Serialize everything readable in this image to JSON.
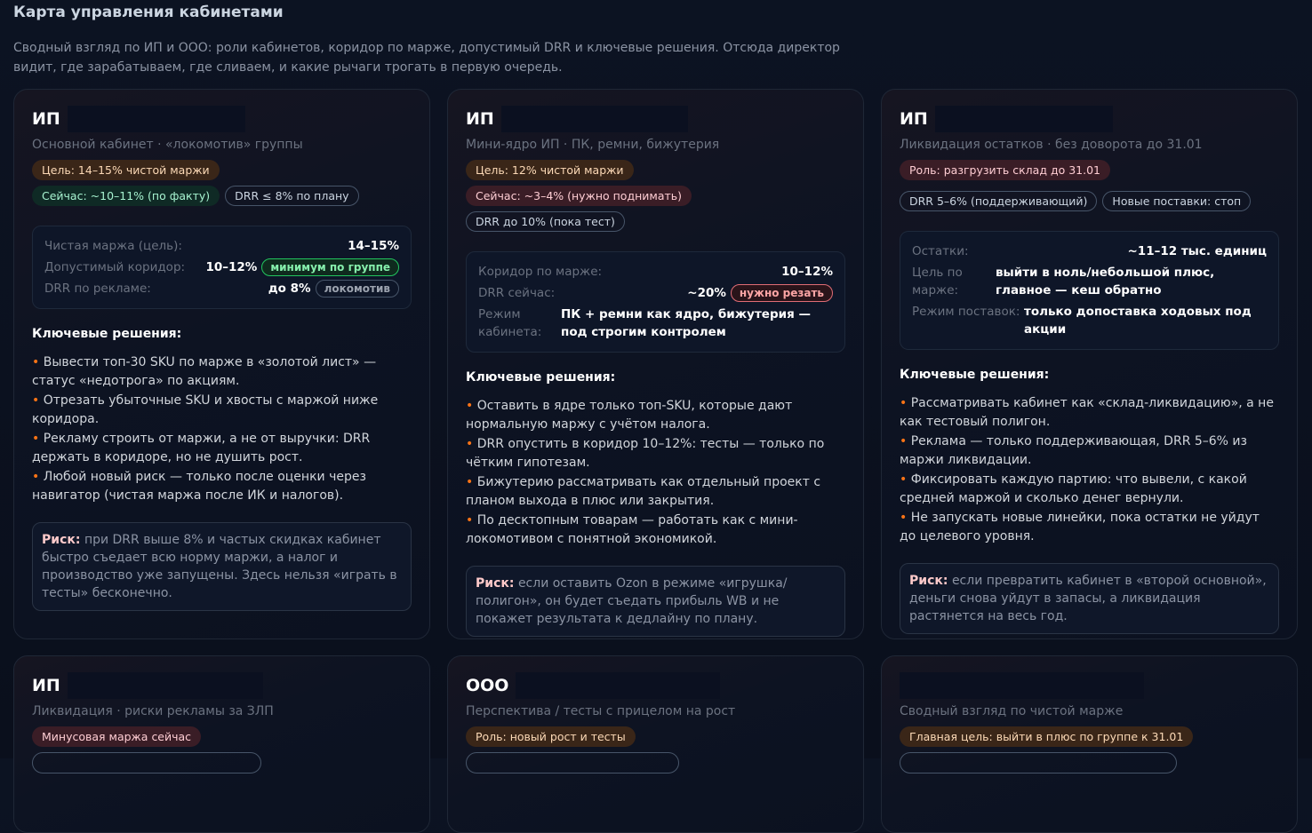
{
  "header": {
    "title": "Карта управления кабинетами",
    "subtitle": "Сводный взгляд по ИП и ООО: роли кабинетов, коридор по марже, допустимый DRR и ключевые решения. Отсюда директор видит, где зарабатываем, где сливаем, и какие рычаги трогать в первую очередь."
  },
  "colors": {
    "accent_bullet": "#f97316",
    "pill_orange": "#3a2618",
    "pill_green": "#0f2a25",
    "pill_red": "#3a1d26"
  },
  "decisions_label": "Ключевые решения:",
  "risk_label": "Риск:",
  "cards": [
    {
      "title": "ИП",
      "subtitle": "Основной кабинет · «локомотив» группы",
      "pills": [
        "Цель: 14–15% чистой маржи",
        "Сейчас: ~10–11% (по факту)",
        "DRR ≤ 8% по плану"
      ],
      "info": [
        {
          "label": "Чистая маржа (цель):",
          "value": "14–15%"
        },
        {
          "label": "Допустимый коридор:",
          "value": "10–12%",
          "badge": "минимум по группе"
        },
        {
          "label": "DRR по рекламе:",
          "value": "до 8%",
          "badge": "локомотив"
        }
      ],
      "decisions": [
        "Вывести топ-30 SKU по марже в «золотой лист» — статус «недотрога» по акциям.",
        "Отрезать убыточные SKU и хвосты с маржой ниже коридора.",
        "Рекламу строить от маржи, а не от выручки: DRR держать в коридоре, но не душить рост.",
        "Любой новый риск — только после оценки через навигатор (чистая маржа после ИК и налогов)."
      ],
      "risk": "при DRR выше 8% и частых скидках кабинет быстро съедает всю норму маржи, а налог и производство уже запущены. Здесь нельзя «играть в тесты» бесконечно."
    },
    {
      "title": "ИП",
      "subtitle": "Мини-ядро ИП · ПК, ремни, бижутерия",
      "pills": [
        "Цель: 12% чистой маржи",
        "Сейчас: ~3–4% (нужно поднимать)",
        "DRR до 10% (пока тест)"
      ],
      "info": [
        {
          "label": "Коридор по марже:",
          "value": "10–12%"
        },
        {
          "label": "DRR сейчас:",
          "value": "~20%",
          "badge": "нужно резать"
        },
        {
          "label": "Режим кабинета:",
          "value": "ПК + ремни как ядро, бижутерия — под строгим контролем"
        }
      ],
      "decisions": [
        "Оставить в ядре только топ-SKU, которые дают нормальную маржу с учётом налога.",
        "DRR опустить в коридор 10–12%: тесты — только по чётким гипотезам.",
        "Бижутерию рассматривать как отдельный проект с планом выхода в плюс или закрытия.",
        "По десктопным товарам — работать как с мини-локомотивом с понятной экономикой."
      ],
      "risk": "если оставить Ozon в режиме «игрушка/полигон», он будет съедать прибыль WB и не покажет результата к дедлайну по плану."
    },
    {
      "title": "ИП",
      "subtitle": "Ликвидация остатков · без доворота до 31.01",
      "pills": [
        "Роль: разгрузить склад до 31.01",
        "DRR 5–6% (поддерживающий)",
        "Новые поставки: стоп"
      ],
      "info": [
        {
          "label": "Остатки:",
          "value": "~11–12 тыс. единиц"
        },
        {
          "label": "Цель по марже:",
          "value": "выйти в ноль/небольшой плюс, главное — кеш обратно"
        },
        {
          "label": "Режим поставок:",
          "value": "только допоставка ходовых под акции"
        }
      ],
      "decisions": [
        "Рассматривать кабинет как «склад-ликвидацию», а не как тестовый полигон.",
        "Реклама — только поддерживающая, DRR 5–6% из маржи ликвидации.",
        "Фиксировать каждую партию: что вывели, с какой средней маржой и сколько денег вернули.",
        "Не запускать новые линейки, пока остатки не уйдут до целевого уровня."
      ],
      "risk": "если превратить кабинет в «второй основной», деньги снова уйдут в запасы, а ликвидация растянется на весь год."
    },
    {
      "title": "ИП",
      "subtitle": "Ликвидация · риски рекламы за ЗЛП",
      "pills": [
        "Минусовая маржа сейчас"
      ]
    },
    {
      "title": "ООО",
      "subtitle": "Перспектива / тесты с прицелом на рост",
      "pills": [
        "Роль: новый рост и тесты"
      ]
    },
    {
      "title": "",
      "subtitle": "Сводный взгляд по чистой марже",
      "pills": [
        "Главная цель: выйти в плюс по группе к 31.01"
      ]
    }
  ]
}
